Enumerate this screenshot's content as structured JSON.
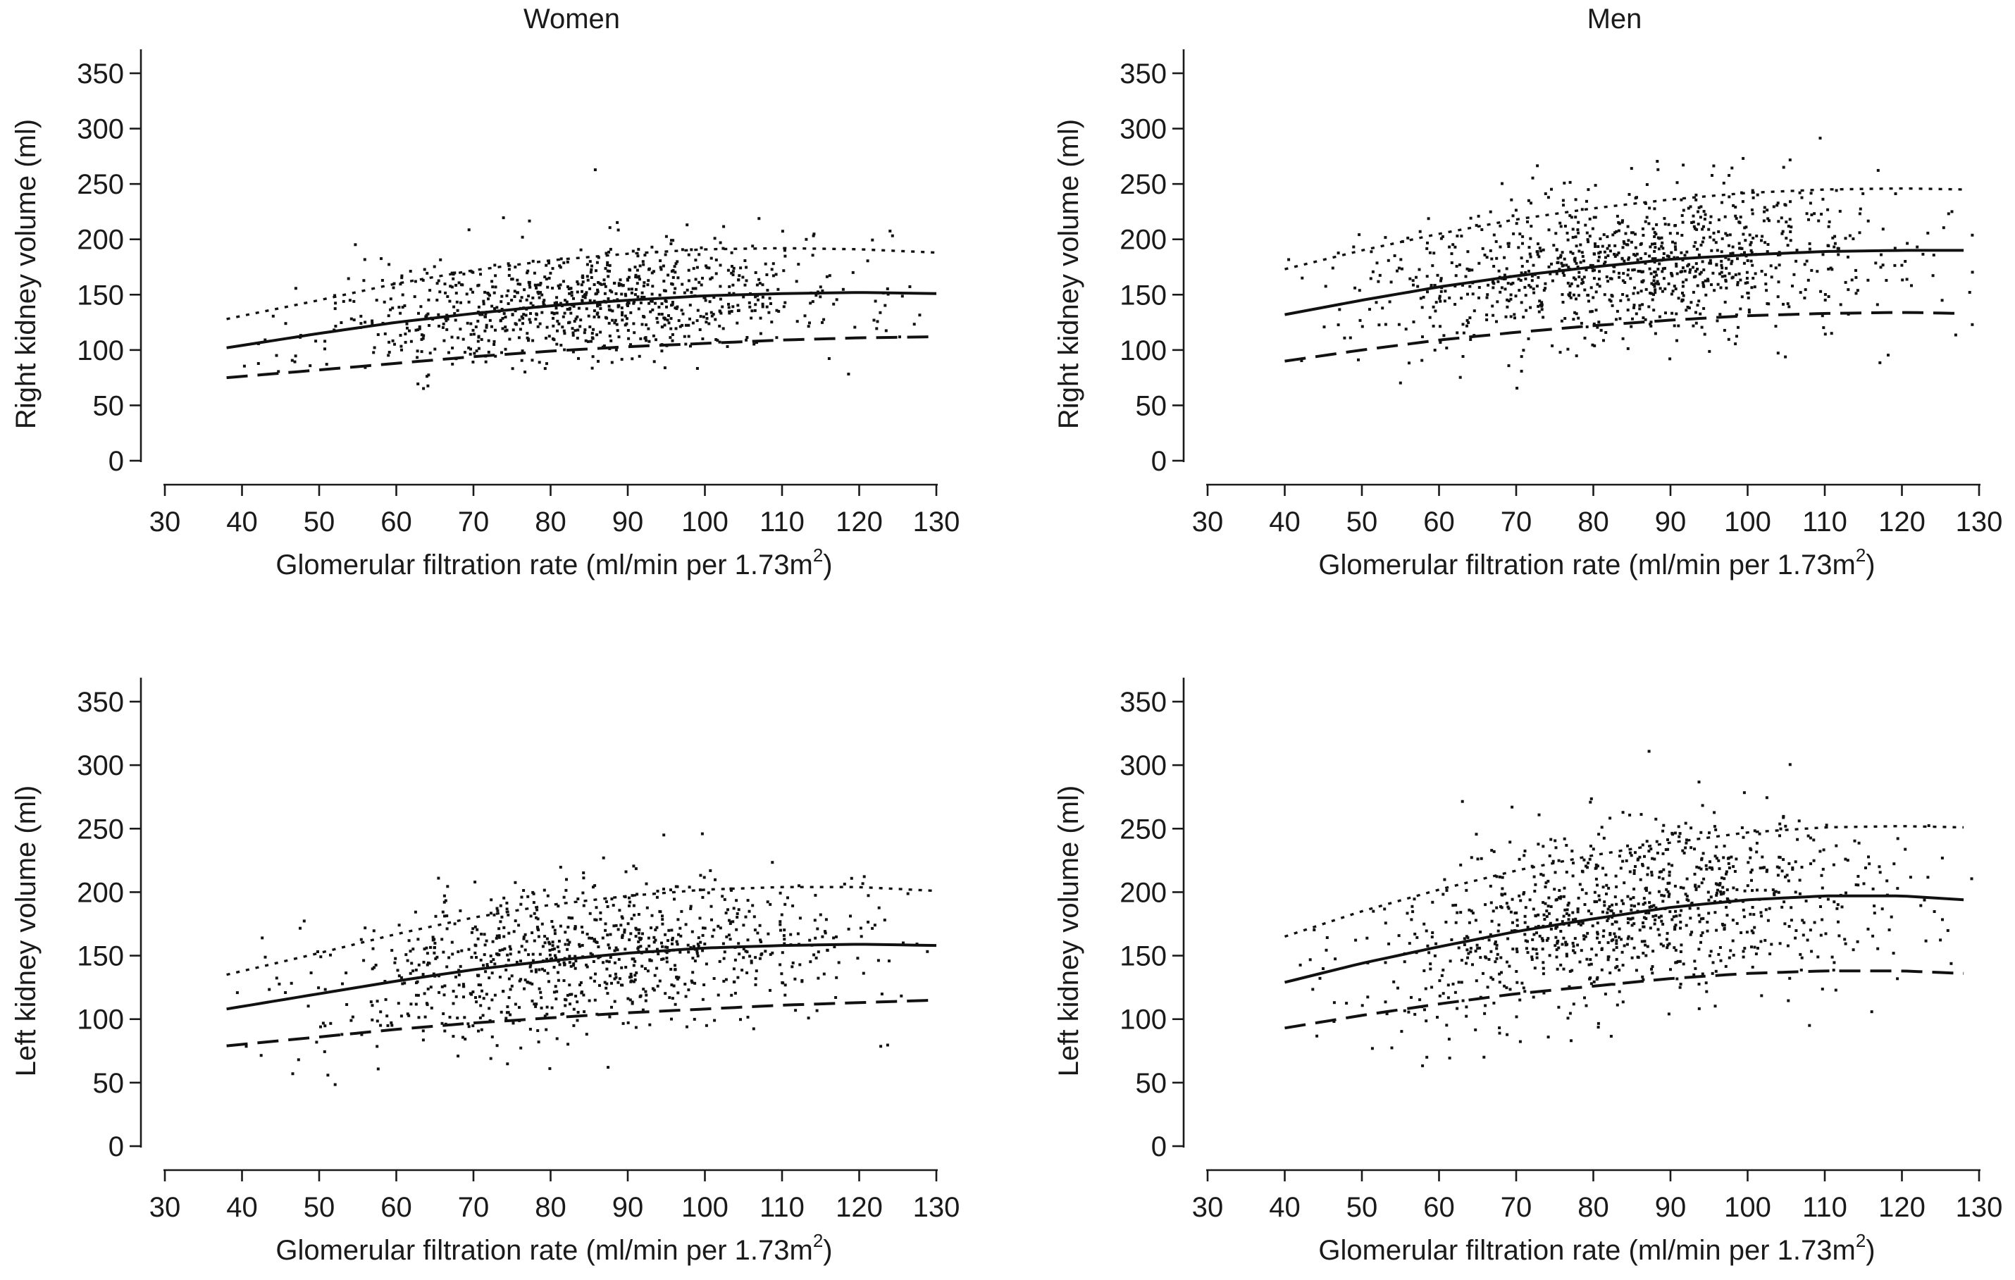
{
  "chart_data": [
    {
      "type": "scatter",
      "title": "Women",
      "xlabel": "Glomerular filtration rate (ml/min per 1.73m",
      "xlabel_superscript": "2",
      "xlabel_suffix": ")",
      "ylabel": "Right kidney volume (ml)",
      "xlim": [
        30,
        130
      ],
      "ylim": [
        0,
        350
      ],
      "xticks": [
        30,
        40,
        50,
        60,
        70,
        80,
        90,
        100,
        110,
        120,
        130
      ],
      "yticks": [
        0,
        50,
        100,
        150,
        200,
        250,
        300,
        350
      ],
      "scatter_cloud": {
        "x_range": [
          38,
          130
        ],
        "point_count": 900,
        "spread": 26,
        "seed": 11
      },
      "curves": [
        {
          "name": "median",
          "style": "solid",
          "x": [
            38,
            50,
            60,
            70,
            80,
            90,
            100,
            110,
            120,
            130
          ],
          "y": [
            102,
            115,
            125,
            133,
            140,
            145,
            149,
            151,
            152,
            151
          ]
        },
        {
          "name": "upper",
          "style": "dotted",
          "x": [
            38,
            50,
            60,
            70,
            80,
            90,
            100,
            110,
            120,
            130
          ],
          "y": [
            128,
            145,
            160,
            172,
            181,
            187,
            191,
            192,
            191,
            188
          ]
        },
        {
          "name": "lower",
          "style": "dashed",
          "x": [
            38,
            50,
            60,
            70,
            80,
            90,
            100,
            110,
            120,
            130
          ],
          "y": [
            75,
            82,
            88,
            94,
            99,
            103,
            106,
            109,
            111,
            112
          ]
        }
      ]
    },
    {
      "type": "scatter",
      "title": "Men",
      "xlabel": "Glomerular filtration rate (ml/min per 1.73m",
      "xlabel_superscript": "2",
      "xlabel_suffix": ")",
      "ylabel": "Right kidney volume (ml)",
      "xlim": [
        30,
        130
      ],
      "ylim": [
        0,
        350
      ],
      "xticks": [
        30,
        40,
        50,
        60,
        70,
        80,
        90,
        100,
        110,
        120,
        130
      ],
      "yticks": [
        0,
        50,
        100,
        150,
        200,
        250,
        300,
        350
      ],
      "scatter_cloud": {
        "x_range": [
          40,
          130
        ],
        "point_count": 1000,
        "spread": 34,
        "seed": 23
      },
      "curves": [
        {
          "name": "median",
          "style": "solid",
          "x": [
            40,
            50,
            60,
            70,
            80,
            90,
            100,
            110,
            120,
            128
          ],
          "y": [
            132,
            145,
            157,
            167,
            175,
            182,
            186,
            189,
            190,
            190
          ]
        },
        {
          "name": "upper",
          "style": "dotted",
          "x": [
            40,
            50,
            60,
            70,
            80,
            90,
            100,
            110,
            120,
            128
          ],
          "y": [
            173,
            190,
            205,
            218,
            228,
            236,
            242,
            245,
            246,
            245
          ]
        },
        {
          "name": "lower",
          "style": "dashed",
          "x": [
            40,
            50,
            60,
            70,
            80,
            90,
            100,
            110,
            120,
            128
          ],
          "y": [
            90,
            100,
            109,
            116,
            122,
            127,
            131,
            133,
            134,
            133
          ]
        }
      ]
    },
    {
      "type": "scatter",
      "title": "",
      "xlabel": "Glomerular filtration rate (ml/min per 1.73m",
      "xlabel_superscript": "2",
      "xlabel_suffix": ")",
      "ylabel": "Left kidney volume (ml)",
      "xlim": [
        30,
        130
      ],
      "ylim": [
        0,
        350
      ],
      "xticks": [
        30,
        40,
        50,
        60,
        70,
        80,
        90,
        100,
        110,
        120,
        130
      ],
      "yticks": [
        0,
        50,
        100,
        150,
        200,
        250,
        300,
        350
      ],
      "scatter_cloud": {
        "x_range": [
          38,
          130
        ],
        "point_count": 900,
        "spread": 30,
        "seed": 37
      },
      "curves": [
        {
          "name": "median",
          "style": "solid",
          "x": [
            38,
            50,
            60,
            70,
            80,
            90,
            100,
            110,
            120,
            130
          ],
          "y": [
            108,
            120,
            130,
            139,
            146,
            152,
            156,
            158,
            159,
            158
          ]
        },
        {
          "name": "upper",
          "style": "dotted",
          "x": [
            38,
            50,
            60,
            70,
            80,
            90,
            100,
            110,
            120,
            130
          ],
          "y": [
            135,
            152,
            167,
            180,
            190,
            197,
            202,
            204,
            204,
            201
          ]
        },
        {
          "name": "lower",
          "style": "dashed",
          "x": [
            38,
            50,
            60,
            70,
            80,
            90,
            100,
            110,
            120,
            130
          ],
          "y": [
            79,
            86,
            92,
            97,
            101,
            105,
            108,
            111,
            113,
            115
          ]
        }
      ]
    },
    {
      "type": "scatter",
      "title": "",
      "xlabel": "Glomerular filtration rate (ml/min per 1.73m",
      "xlabel_superscript": "2",
      "xlabel_suffix": ")",
      "ylabel": "Left kidney volume (ml)",
      "xlim": [
        30,
        130
      ],
      "ylim": [
        0,
        350
      ],
      "xticks": [
        30,
        40,
        50,
        60,
        70,
        80,
        90,
        100,
        110,
        120,
        130
      ],
      "yticks": [
        0,
        50,
        100,
        150,
        200,
        250,
        300,
        350
      ],
      "scatter_cloud": {
        "x_range": [
          40,
          130
        ],
        "point_count": 1000,
        "spread": 36,
        "seed": 51
      },
      "curves": [
        {
          "name": "median",
          "style": "solid",
          "x": [
            40,
            50,
            60,
            70,
            80,
            90,
            100,
            110,
            120,
            128
          ],
          "y": [
            129,
            144,
            157,
            169,
            179,
            188,
            194,
            197,
            197,
            194
          ]
        },
        {
          "name": "upper",
          "style": "dotted",
          "x": [
            40,
            50,
            60,
            70,
            80,
            90,
            100,
            110,
            120,
            128
          ],
          "y": [
            165,
            185,
            202,
            217,
            229,
            239,
            247,
            251,
            252,
            251
          ]
        },
        {
          "name": "lower",
          "style": "dashed",
          "x": [
            40,
            50,
            60,
            70,
            80,
            90,
            100,
            110,
            120,
            128
          ],
          "y": [
            93,
            103,
            112,
            120,
            126,
            132,
            136,
            138,
            138,
            136
          ]
        }
      ]
    }
  ]
}
